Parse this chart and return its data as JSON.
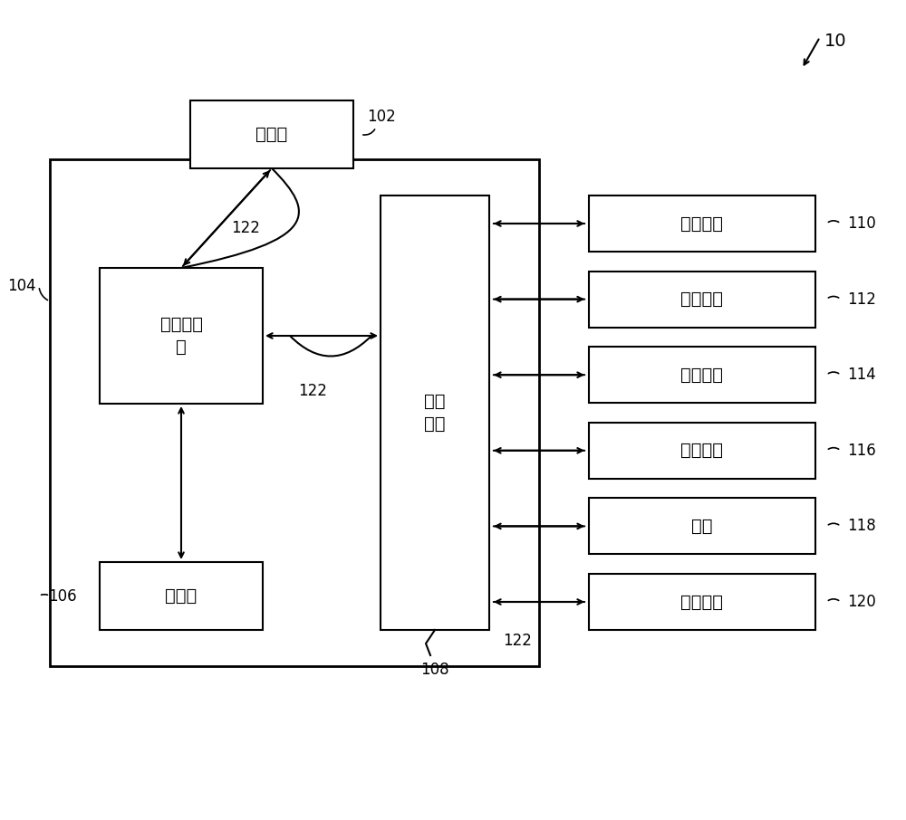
{
  "bg_color": "#ffffff",
  "line_color": "#000000",
  "box_fill": "#ffffff",
  "fig_label": "10",
  "nodes": {
    "storage": {
      "label": "存储器",
      "id": "102"
    },
    "mem_ctrl": {
      "label": "存储控刻\n器",
      "id": "104"
    },
    "processor": {
      "label": "处理器",
      "id": "106"
    },
    "peripheral": {
      "label": "外设\n接口",
      "id": "108"
    },
    "rf": {
      "label": "射频模块",
      "id": "110"
    },
    "location": {
      "label": "定位模块",
      "id": "112"
    },
    "camera": {
      "label": "摄像模块",
      "id": "114"
    },
    "audio": {
      "label": "音频模块",
      "id": "116"
    },
    "screen": {
      "label": "屏幕",
      "id": "118"
    },
    "key": {
      "label": "按键模块",
      "id": "120"
    }
  },
  "label_122": "122",
  "font_size_cn": 14,
  "font_size_num": 12
}
